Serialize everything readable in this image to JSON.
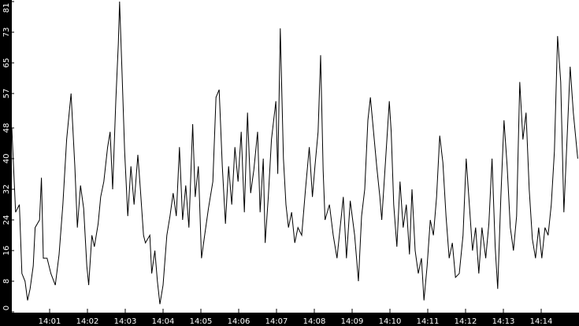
{
  "chart_data": {
    "type": "line",
    "title": "",
    "xlabel": "",
    "ylabel": "",
    "xlim": [
      "14:00:00",
      "14:15:00"
    ],
    "ylim": [
      0,
      81
    ],
    "grid": false,
    "background_color": "#ffffff",
    "line_color": "#000000",
    "axis_band_color": "#000000",
    "yticks": [
      0,
      8,
      16,
      24,
      32,
      40,
      48,
      57,
      65,
      73,
      81
    ],
    "xticks": [
      "14:01",
      "14:02",
      "14:03",
      "14:04",
      "14:05",
      "14:06",
      "14:07",
      "14:08",
      "14:09",
      "14:10",
      "14:11",
      "14:12",
      "14:13",
      "14:14"
    ],
    "series": [
      {
        "x": [
          "14:00:00",
          "14:00:06",
          "14:00:12",
          "14:00:16",
          "14:00:21",
          "14:00:25",
          "14:00:29",
          "14:00:34",
          "14:00:37",
          "14:00:44",
          "14:00:47",
          "14:00:50",
          "14:00:56",
          "14:01:02",
          "14:01:09",
          "14:01:15",
          "14:01:21",
          "14:01:27",
          "14:01:34",
          "14:01:40",
          "14:01:44",
          "14:01:49",
          "14:01:54",
          "14:01:59",
          "14:02:02",
          "14:02:07",
          "14:02:11",
          "14:02:17",
          "14:02:21",
          "14:02:26",
          "14:02:32",
          "14:02:36",
          "14:02:40",
          "14:02:45",
          "14:02:49",
          "14:02:51",
          "14:02:55",
          "14:02:59",
          "14:03:04",
          "14:03:09",
          "14:03:14",
          "14:03:20",
          "14:03:24",
          "14:03:29",
          "14:03:32",
          "14:03:39",
          "14:03:42",
          "14:03:47",
          "14:03:51",
          "14:03:55",
          "14:04:00",
          "14:04:06",
          "14:04:11",
          "14:04:16",
          "14:04:21",
          "14:04:26",
          "14:04:31",
          "14:04:36",
          "14:04:41",
          "14:04:47",
          "14:04:51",
          "14:04:56",
          "14:05:01",
          "14:05:06",
          "14:05:12",
          "14:05:19",
          "14:05:24",
          "14:05:29",
          "14:05:34",
          "14:05:39",
          "14:05:44",
          "14:05:49",
          "14:05:54",
          "14:05:59",
          "14:06:04",
          "14:06:09",
          "14:06:14",
          "14:06:19",
          "14:06:24",
          "14:06:30",
          "14:06:34",
          "14:06:39",
          "14:06:42",
          "14:06:47",
          "14:06:52",
          "14:06:59",
          "14:07:02",
          "14:07:06",
          "14:07:11",
          "14:07:15",
          "14:07:19",
          "14:07:24",
          "14:07:29",
          "14:07:34",
          "14:07:40",
          "14:07:46",
          "14:07:52",
          "14:07:57",
          "14:08:01",
          "14:08:06",
          "14:08:10",
          "14:08:14",
          "14:08:17",
          "14:08:24",
          "14:08:30",
          "14:08:36",
          "14:08:41",
          "14:08:46",
          "14:08:51",
          "14:08:57",
          "14:09:04",
          "14:09:10",
          "14:09:15",
          "14:09:20",
          "14:09:25",
          "14:09:29",
          "14:09:34",
          "14:09:39",
          "14:09:44",
          "14:09:47",
          "14:09:54",
          "14:09:59",
          "14:10:02",
          "14:10:06",
          "14:10:11",
          "14:10:16",
          "14:10:21",
          "14:10:26",
          "14:10:31",
          "14:10:35",
          "14:10:40",
          "14:10:45",
          "14:10:50",
          "14:10:54",
          "14:10:59",
          "14:11:04",
          "14:11:09",
          "14:11:14",
          "14:11:19",
          "14:11:24",
          "14:11:29",
          "14:11:34",
          "14:11:39",
          "14:11:44",
          "14:11:50",
          "14:11:56",
          "14:12:01",
          "14:12:06",
          "14:12:11",
          "14:12:16",
          "14:12:21",
          "14:12:26",
          "14:12:32",
          "14:12:37",
          "14:12:42",
          "14:12:47",
          "14:12:51",
          "14:12:56",
          "14:13:01",
          "14:13:06",
          "14:13:11",
          "14:13:16",
          "14:13:21",
          "14:13:26",
          "14:13:31",
          "14:13:36",
          "14:13:41",
          "14:13:46",
          "14:13:51",
          "14:13:56",
          "14:14:01",
          "14:14:06",
          "14:14:11",
          "14:14:16",
          "14:14:21",
          "14:14:26",
          "14:14:31",
          "14:14:36",
          "14:14:41",
          "14:14:46",
          "14:14:51",
          "14:14:58"
        ],
        "y": [
          48,
          26,
          28,
          10,
          8,
          3,
          6,
          12,
          22,
          24,
          35,
          14,
          14,
          10,
          7,
          15,
          28,
          45,
          57,
          38,
          22,
          33,
          27,
          12,
          7,
          20,
          17,
          23,
          30,
          34,
          43,
          47,
          32,
          55,
          70,
          81,
          62,
          42,
          25,
          38,
          28,
          41,
          32,
          20,
          18,
          20,
          10,
          16,
          8,
          2,
          7,
          20,
          25,
          31,
          25,
          43,
          24,
          33,
          22,
          49,
          30,
          38,
          14,
          20,
          27,
          34,
          56,
          58,
          38,
          23,
          38,
          28,
          43,
          34,
          47,
          26,
          52,
          31,
          37,
          47,
          26,
          40,
          18,
          30,
          45,
          55,
          36,
          74,
          40,
          28,
          22,
          26,
          18,
          22,
          20,
          32,
          43,
          30,
          38,
          47,
          67,
          37,
          24,
          28,
          20,
          14,
          22,
          30,
          14,
          29,
          20,
          8,
          25,
          32,
          50,
          56,
          47,
          38,
          30,
          24,
          42,
          55,
          47,
          28,
          17,
          34,
          22,
          28,
          15,
          32,
          16,
          10,
          14,
          3,
          12,
          24,
          20,
          30,
          46,
          39,
          25,
          14,
          18,
          9,
          10,
          20,
          40,
          28,
          16,
          22,
          10,
          22,
          14,
          23,
          40,
          17,
          6,
          30,
          50,
          38,
          22,
          16,
          25,
          60,
          45,
          52,
          32,
          19,
          14,
          22,
          14,
          22,
          20,
          28,
          42,
          72,
          60,
          26,
          45,
          64,
          52,
          40
        ]
      }
    ]
  }
}
